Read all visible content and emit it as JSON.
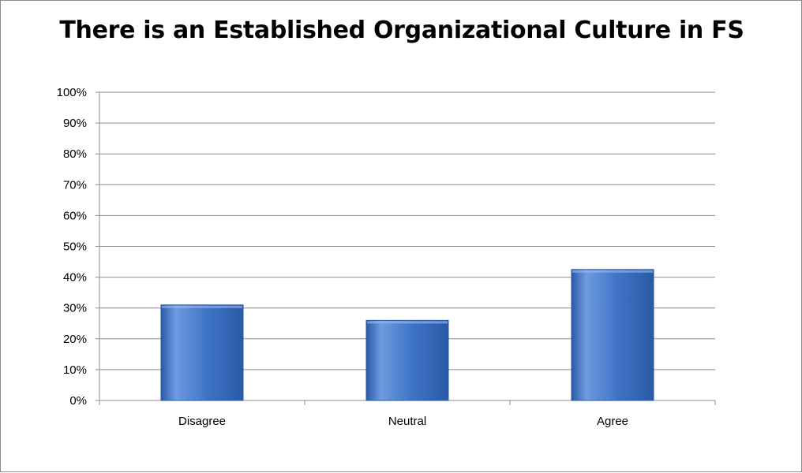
{
  "chart_data": {
    "type": "bar",
    "title": "There is an Established Organizational Culture in FS",
    "categories": [
      "Disagree",
      "Neutral",
      "Agree"
    ],
    "values": [
      31,
      26,
      42.5
    ],
    "value_unit": "%",
    "ylim": [
      0,
      100
    ],
    "ytick_step": 10,
    "yticks": [
      "0%",
      "10%",
      "20%",
      "30%",
      "40%",
      "50%",
      "60%",
      "70%",
      "80%",
      "90%",
      "100%"
    ],
    "xlabel": "",
    "ylabel": "",
    "grid": true,
    "legend": "none",
    "colors": {
      "bar_light": "#6f9be0",
      "bar_mid": "#3f74c8",
      "bar_dark": "#2a5aa6",
      "gridline": "#8c8c8c",
      "axis": "#8c8c8c",
      "frame": "#8c8c8c"
    }
  }
}
